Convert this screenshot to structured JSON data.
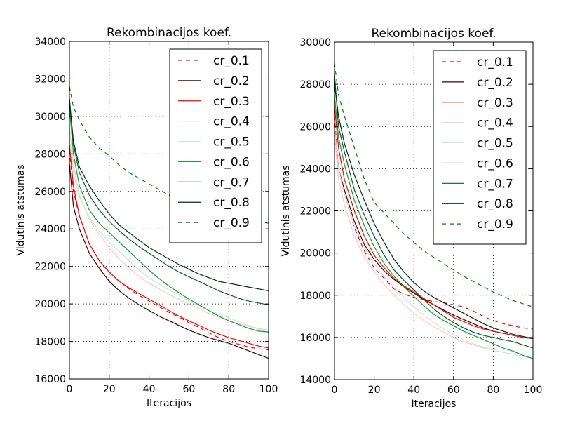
{
  "chart_data": [
    {
      "type": "line",
      "title": "Rekombinacijos koef.",
      "xlabel": "Iteracijos",
      "ylabel": "Vidutinis atstumas",
      "xlim": [
        0,
        100
      ],
      "ylim": [
        16000,
        34000
      ],
      "xticks": [
        0,
        20,
        40,
        60,
        80,
        100
      ],
      "yticks": [
        16000,
        18000,
        20000,
        22000,
        24000,
        26000,
        28000,
        30000,
        32000,
        34000
      ],
      "grid": true,
      "legend": "top-right",
      "x": [
        0,
        2,
        5,
        10,
        15,
        20,
        25,
        30,
        35,
        40,
        45,
        50,
        55,
        60,
        65,
        70,
        75,
        80,
        85,
        90,
        95,
        100
      ],
      "series": [
        {
          "name": "cr_0.1",
          "color": "#ff0000",
          "dash": "dashed",
          "values": [
            28200,
            26000,
            24700,
            23200,
            22300,
            21700,
            21200,
            20800,
            20450,
            20150,
            19850,
            19550,
            19300,
            19000,
            18750,
            18450,
            18200,
            18000,
            17850,
            17700,
            17600,
            17550
          ]
        },
        {
          "name": "cr_0.2",
          "color": "#3a0000",
          "dash": "solid",
          "values": [
            27500,
            25200,
            24000,
            22700,
            21900,
            21200,
            20700,
            20300,
            19950,
            19650,
            19350,
            19100,
            18850,
            18600,
            18400,
            18200,
            18050,
            17900,
            17700,
            17500,
            17300,
            17100
          ]
        },
        {
          "name": "cr_0.3",
          "color": "#ff0000",
          "dash": "solid",
          "values": [
            28500,
            26300,
            24700,
            23200,
            22300,
            21700,
            21200,
            20850,
            20550,
            20250,
            19950,
            19650,
            19350,
            19100,
            18850,
            18600,
            18400,
            18200,
            18050,
            17900,
            17750,
            17650
          ]
        },
        {
          "name": "cr_0.4",
          "color": "#ffc8c8",
          "dash": "solid",
          "values": [
            29500,
            27500,
            25800,
            24500,
            23700,
            23000,
            22400,
            21900,
            21450,
            21100,
            20800,
            20500,
            20250,
            20000,
            19750,
            19500,
            19300,
            19100,
            18950,
            18800,
            18700,
            18600
          ]
        },
        {
          "name": "cr_0.5",
          "color": "#c8e8d8",
          "dash": "solid",
          "values": [
            29000,
            27000,
            25700,
            24600,
            23900,
            23300,
            22800,
            22300,
            21800,
            21400,
            21050,
            20750,
            20450,
            20150,
            19900,
            19650,
            19450,
            19250,
            19050,
            18850,
            18650,
            18500
          ]
        },
        {
          "name": "cr_0.6",
          "color": "#1a9a3a",
          "dash": "solid",
          "values": [
            30500,
            28000,
            26300,
            25000,
            24300,
            23800,
            23300,
            22800,
            22300,
            21800,
            21350,
            20950,
            20600,
            20250,
            19950,
            19650,
            19350,
            19100,
            18900,
            18700,
            18550,
            18500
          ]
        },
        {
          "name": "cr_0.7",
          "color": "#0c5a28",
          "dash": "solid",
          "values": [
            31000,
            28500,
            27000,
            25800,
            25000,
            24400,
            23900,
            23450,
            23050,
            22700,
            22350,
            22000,
            21700,
            21450,
            21200,
            20950,
            20700,
            20500,
            20300,
            20150,
            20050,
            19950
          ]
        },
        {
          "name": "cr_0.8",
          "color": "#0a2a1a",
          "dash": "solid",
          "values": [
            30800,
            28700,
            27300,
            26300,
            25500,
            24800,
            24200,
            23800,
            23400,
            23000,
            22700,
            22400,
            22100,
            21850,
            21600,
            21400,
            21200,
            21100,
            21000,
            20900,
            20800,
            20700
          ]
        },
        {
          "name": "cr_0.9",
          "color": "#0a7a10",
          "dash": "dashed",
          "values": [
            31600,
            30500,
            29800,
            28900,
            28300,
            27900,
            27400,
            27000,
            26700,
            26400,
            26100,
            25800,
            25600,
            25400,
            25200,
            25000,
            24900,
            24800,
            24650,
            24500,
            24400,
            24300
          ]
        }
      ]
    },
    {
      "type": "line",
      "title": "Rekombinacijos koef.",
      "xlabel": "Iteracijos",
      "ylabel": "Vidutinis atstumas",
      "xlim": [
        0,
        100
      ],
      "ylim": [
        14000,
        30000
      ],
      "xticks": [
        0,
        20,
        40,
        60,
        80,
        100
      ],
      "yticks": [
        14000,
        16000,
        18000,
        20000,
        22000,
        24000,
        26000,
        28000,
        30000
      ],
      "grid": true,
      "legend": "top-right",
      "x": [
        0,
        2,
        5,
        10,
        15,
        20,
        25,
        30,
        35,
        40,
        45,
        50,
        55,
        60,
        65,
        70,
        75,
        80,
        85,
        90,
        95,
        100
      ],
      "series": [
        {
          "name": "cr_0.1",
          "color": "#ff0000",
          "dash": "dashed",
          "values": [
            26500,
            24000,
            22800,
            21200,
            20100,
            19300,
            18800,
            18300,
            18050,
            17900,
            17800,
            17700,
            17650,
            17550,
            17450,
            17250,
            17000,
            16800,
            16650,
            16550,
            16450,
            16400
          ]
        },
        {
          "name": "cr_0.2",
          "color": "#3a0000",
          "dash": "solid",
          "values": [
            26000,
            24000,
            23000,
            21500,
            20400,
            19700,
            19150,
            18750,
            18400,
            18100,
            17800,
            17550,
            17300,
            17050,
            16850,
            16650,
            16450,
            16300,
            16200,
            16100,
            16000,
            15950
          ]
        },
        {
          "name": "cr_0.3",
          "color": "#ff0000",
          "dash": "solid",
          "values": [
            27000,
            25000,
            23500,
            22000,
            20800,
            19900,
            19300,
            18800,
            18450,
            18150,
            17850,
            17550,
            17250,
            16950,
            16750,
            16550,
            16400,
            16300,
            16200,
            16100,
            16000,
            15950
          ]
        },
        {
          "name": "cr_0.4",
          "color": "#ffc8c8",
          "dash": "solid",
          "values": [
            25500,
            23500,
            22300,
            20800,
            19800,
            19100,
            18500,
            18000,
            17550,
            17150,
            16800,
            16500,
            16250,
            16000,
            15800,
            15650,
            15500,
            15400,
            15300,
            15200,
            15100,
            15000
          ]
        },
        {
          "name": "cr_0.5",
          "color": "#c8e8d8",
          "dash": "solid",
          "values": [
            26000,
            24000,
            22800,
            21300,
            20300,
            19500,
            18900,
            18350,
            17900,
            17450,
            17050,
            16700,
            16400,
            16150,
            15900,
            15700,
            15550,
            15400,
            15300,
            15200,
            15100,
            15000
          ]
        },
        {
          "name": "cr_0.6",
          "color": "#1a9a3a",
          "dash": "solid",
          "values": [
            27500,
            25500,
            24200,
            22500,
            21300,
            20300,
            19500,
            18900,
            18400,
            17950,
            17500,
            17100,
            16800,
            16550,
            16300,
            16100,
            15900,
            15700,
            15500,
            15350,
            15150,
            15000
          ]
        },
        {
          "name": "cr_0.7",
          "color": "#0c5a28",
          "dash": "solid",
          "values": [
            28500,
            26000,
            24800,
            23000,
            21800,
            20800,
            19900,
            19200,
            18700,
            18250,
            17800,
            17350,
            17000,
            16700,
            16450,
            16250,
            16100,
            16000,
            15900,
            15800,
            15650,
            15500
          ]
        },
        {
          "name": "cr_0.8",
          "color": "#0a2a1a",
          "dash": "solid",
          "values": [
            28000,
            26500,
            25200,
            23700,
            22500,
            21400,
            20500,
            19700,
            19100,
            18600,
            18200,
            17900,
            17650,
            17400,
            17150,
            16900,
            16650,
            16450,
            16300,
            16150,
            16050,
            15950
          ]
        },
        {
          "name": "cr_0.9",
          "color": "#0a7a10",
          "dash": "dashed",
          "values": [
            29000,
            27500,
            26500,
            25000,
            23500,
            22400,
            21900,
            21400,
            20900,
            20500,
            20100,
            19800,
            19500,
            19200,
            18900,
            18650,
            18400,
            18150,
            17950,
            17750,
            17600,
            17450
          ]
        }
      ]
    }
  ]
}
